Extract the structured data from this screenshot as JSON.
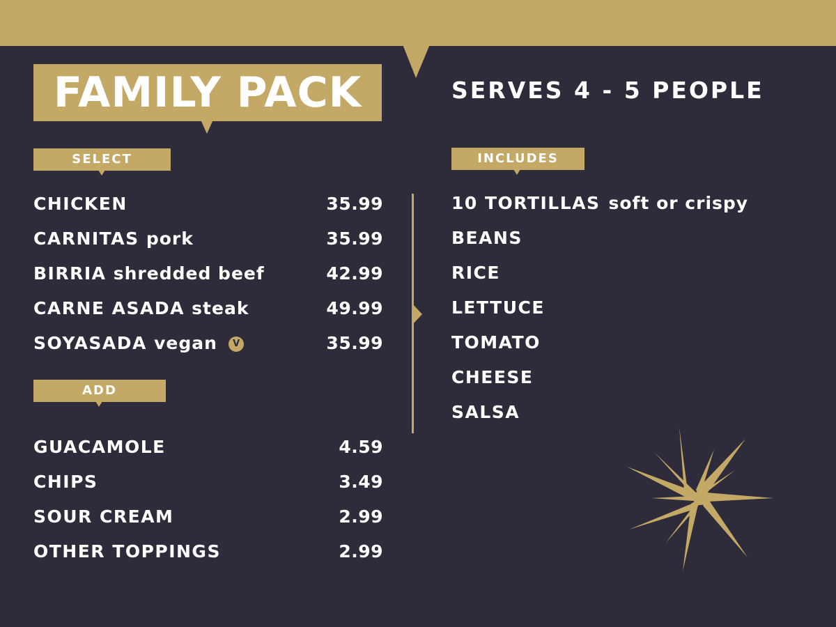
{
  "header": {
    "title": "FAMILY PACK",
    "serves": "SERVES 4 - 5 PEOPLE"
  },
  "select": {
    "label": "SELECT",
    "items": [
      {
        "name": "CHICKEN",
        "desc": "",
        "price": "35.99"
      },
      {
        "name": "CARNITAS",
        "desc": "pork",
        "price": "35.99"
      },
      {
        "name": "BIRRIA",
        "desc": "shredded beef",
        "price": "42.99"
      },
      {
        "name": "CARNE ASADA",
        "desc": "steak",
        "price": "49.99"
      },
      {
        "name": "SOYASADA",
        "desc": "vegan",
        "price": "35.99",
        "badge": "V"
      }
    ]
  },
  "add": {
    "label": "ADD",
    "items": [
      {
        "name": "GUACAMOLE",
        "price": "4.59"
      },
      {
        "name": "CHIPS",
        "price": "3.49"
      },
      {
        "name": "SOUR CREAM",
        "price": "2.99"
      },
      {
        "name": "OTHER TOPPINGS",
        "price": "2.99"
      }
    ]
  },
  "includes": {
    "label": "INCLUDES",
    "items": [
      {
        "name": "10 TORTILLAS",
        "desc": "soft or crispy"
      },
      {
        "name": "BEANS",
        "desc": ""
      },
      {
        "name": "RICE",
        "desc": ""
      },
      {
        "name": "LETTUCE",
        "desc": ""
      },
      {
        "name": "TOMATO",
        "desc": ""
      },
      {
        "name": "CHEESE",
        "desc": ""
      },
      {
        "name": "SALSA",
        "desc": ""
      }
    ]
  },
  "colors": {
    "background": "#2e2b3a",
    "accent": "#c4a866",
    "text": "#ffffff"
  },
  "icons": {
    "decoration": "sparkle-star-icon",
    "vegan": "vegan-badge-icon"
  }
}
